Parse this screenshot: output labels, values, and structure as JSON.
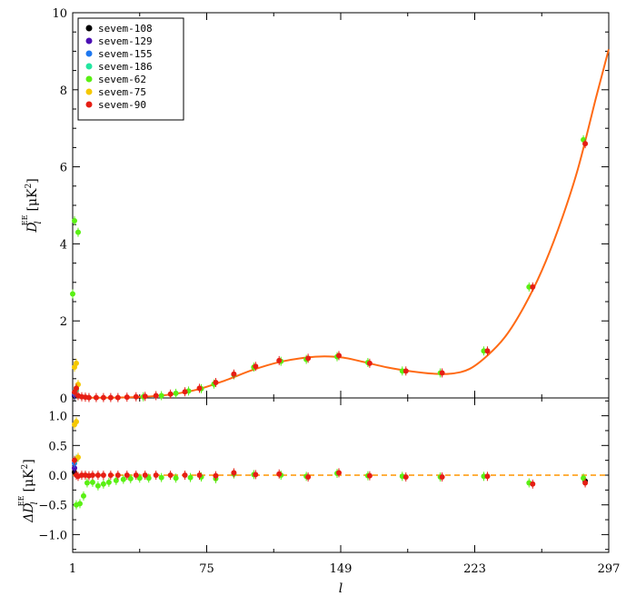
{
  "chart_data": [
    {
      "type": "scatter",
      "panel": "top",
      "ylabel": "D_l^EE [μK^2]",
      "ylabel_main": "D",
      "ylabel_sub": "l",
      "ylabel_sup": "EE",
      "ylabel_unit": "[μK",
      "ylabel_unit_sup": "2",
      "ylabel_unit_close": "]",
      "xlim": [
        1,
        297
      ],
      "ylim": [
        0,
        10
      ],
      "yticks": [
        "0",
        "2",
        "4",
        "6",
        "8",
        "10"
      ],
      "ytick_values": [
        0,
        2,
        4,
        6,
        8,
        10
      ],
      "legend_position": "top-left",
      "series": [
        {
          "name": "sevem-108",
          "color": "#000000",
          "points": [
            [
              2,
              0.05
            ]
          ]
        },
        {
          "name": "sevem-129",
          "color": "#4b0fb4",
          "points": [
            [
              2,
              0.08
            ]
          ]
        },
        {
          "name": "sevem-155",
          "color": "#1e78f0",
          "points": [
            [
              2,
              0.12
            ]
          ]
        },
        {
          "name": "sevem-186",
          "color": "#23e6a0",
          "points": [
            [
              3,
              0.2
            ]
          ]
        },
        {
          "name": "sevem-62",
          "color": "#5af014",
          "points": [
            [
              1,
              2.7
            ],
            [
              2,
              4.6
            ],
            [
              4,
              4.3
            ],
            [
              3,
              0.25
            ],
            [
              40,
              0.03
            ],
            [
              50,
              0.06
            ],
            [
              58,
              0.12
            ],
            [
              65,
              0.18
            ],
            [
              72,
              0.24
            ],
            [
              79,
              0.36
            ],
            [
              90,
              0.6
            ],
            [
              101,
              0.8
            ],
            [
              116,
              0.95
            ],
            [
              130,
              1.0
            ],
            [
              147,
              1.07
            ],
            [
              164,
              0.92
            ],
            [
              183,
              0.7
            ],
            [
              204,
              0.65
            ],
            [
              228,
              1.22
            ],
            [
              253,
              2.88
            ],
            [
              283,
              6.7
            ]
          ]
        },
        {
          "name": "sevem-75",
          "color": "#f5c800",
          "points": [
            [
              2,
              0.8
            ],
            [
              3,
              0.9
            ],
            [
              4,
              0.35
            ]
          ]
        },
        {
          "name": "sevem-90",
          "color": "#e61e14",
          "points": [
            [
              2,
              0.15
            ],
            [
              3,
              0.25
            ],
            [
              4,
              0.06
            ],
            [
              6,
              0.03
            ],
            [
              8,
              0.02
            ],
            [
              10,
              0.01
            ],
            [
              14,
              0.01
            ],
            [
              18,
              0.01
            ],
            [
              22,
              0.01
            ],
            [
              26,
              0.01
            ],
            [
              31,
              0.02
            ],
            [
              36,
              0.03
            ],
            [
              41,
              0.04
            ],
            [
              47,
              0.06
            ],
            [
              55,
              0.1
            ],
            [
              63,
              0.16
            ],
            [
              71,
              0.25
            ],
            [
              80,
              0.4
            ],
            [
              90,
              0.62
            ],
            [
              102,
              0.82
            ],
            [
              115,
              0.97
            ],
            [
              131,
              1.03
            ],
            [
              148,
              1.1
            ],
            [
              165,
              0.9
            ],
            [
              185,
              0.7
            ],
            [
              205,
              0.65
            ],
            [
              230,
              1.22
            ],
            [
              255,
              2.88
            ],
            [
              284,
              6.6
            ]
          ]
        }
      ],
      "model_curve": {
        "color": "#ff6a14",
        "points": [
          [
            1,
            0.05
          ],
          [
            10,
            0.01
          ],
          [
            25,
            0.01
          ],
          [
            40,
            0.03
          ],
          [
            55,
            0.09
          ],
          [
            70,
            0.22
          ],
          [
            85,
            0.45
          ],
          [
            100,
            0.72
          ],
          [
            115,
            0.93
          ],
          [
            130,
            1.05
          ],
          [
            140,
            1.08
          ],
          [
            150,
            1.05
          ],
          [
            162,
            0.93
          ],
          [
            175,
            0.79
          ],
          [
            188,
            0.69
          ],
          [
            200,
            0.63
          ],
          [
            210,
            0.63
          ],
          [
            220,
            0.75
          ],
          [
            230,
            1.1
          ],
          [
            240,
            1.6
          ],
          [
            250,
            2.35
          ],
          [
            260,
            3.3
          ],
          [
            270,
            4.5
          ],
          [
            280,
            5.95
          ],
          [
            290,
            7.8
          ],
          [
            297,
            9.05
          ]
        ]
      }
    },
    {
      "type": "scatter",
      "panel": "bottom",
      "ylabel": "ΔD_l^EE [μK^2]",
      "ylabel_main": "ΔD",
      "ylabel_sub": "l",
      "ylabel_sup": "EE",
      "ylabel_unit": "[μK",
      "ylabel_unit_sup": "2",
      "ylabel_unit_close": "]",
      "xlabel": "l",
      "xlim": [
        1,
        297
      ],
      "ylim": [
        -1.3,
        1.3
      ],
      "yticks": [
        "−1.0",
        "−0.5",
        "0.0",
        "0.5",
        "1.0"
      ],
      "ytick_values": [
        -1.0,
        -0.5,
        0.0,
        0.5,
        1.0
      ],
      "xticks": [
        "1",
        "75",
        "149",
        "223",
        "297"
      ],
      "xtick_values": [
        1,
        75,
        149,
        223,
        297
      ],
      "zero_line_color": "#ff9600",
      "series": [
        {
          "name": "sevem-108",
          "color": "#000000",
          "points": [
            [
              2,
              0.05
            ],
            [
              284,
              -0.1
            ]
          ]
        },
        {
          "name": "sevem-129",
          "color": "#4b0fb4",
          "points": [
            [
              2,
              0.12
            ]
          ]
        },
        {
          "name": "sevem-155",
          "color": "#1e78f0",
          "points": [
            [
              2,
              0.2
            ]
          ]
        },
        {
          "name": "sevem-186",
          "color": "#23e6a0",
          "points": [
            [
              3,
              0.27
            ]
          ]
        },
        {
          "name": "sevem-62",
          "color": "#5af014",
          "points": [
            [
              3,
              -0.5
            ],
            [
              5,
              -0.48
            ],
            [
              7,
              -0.35
            ],
            [
              9,
              -0.13
            ],
            [
              12,
              -0.12
            ],
            [
              15,
              -0.18
            ],
            [
              18,
              -0.15
            ],
            [
              21,
              -0.12
            ],
            [
              25,
              -0.09
            ],
            [
              29,
              -0.07
            ],
            [
              33,
              -0.06
            ],
            [
              38,
              -0.05
            ],
            [
              43,
              -0.05
            ],
            [
              50,
              -0.04
            ],
            [
              58,
              -0.05
            ],
            [
              66,
              -0.04
            ],
            [
              72,
              -0.03
            ],
            [
              80,
              -0.06
            ],
            [
              90,
              0.02
            ],
            [
              101,
              0.01
            ],
            [
              116,
              0.0
            ],
            [
              130,
              -0.02
            ],
            [
              147,
              0.03
            ],
            [
              164,
              -0.01
            ],
            [
              183,
              -0.02
            ],
            [
              204,
              -0.03
            ],
            [
              228,
              -0.02
            ],
            [
              253,
              -0.13
            ],
            [
              283,
              -0.05
            ]
          ]
        },
        {
          "name": "sevem-75",
          "color": "#f5c800",
          "points": [
            [
              2,
              0.85
            ],
            [
              3,
              0.9
            ],
            [
              4,
              0.3
            ]
          ]
        },
        {
          "name": "sevem-90",
          "color": "#e61e14",
          "points": [
            [
              2,
              0.25
            ],
            [
              3,
              0.0
            ],
            [
              4,
              -0.02
            ],
            [
              6,
              0.0
            ],
            [
              8,
              0.0
            ],
            [
              10,
              -0.01
            ],
            [
              12,
              0.0
            ],
            [
              15,
              0.0
            ],
            [
              18,
              0.0
            ],
            [
              22,
              0.0
            ],
            [
              26,
              0.0
            ],
            [
              31,
              0.0
            ],
            [
              36,
              0.0
            ],
            [
              41,
              0.0
            ],
            [
              47,
              0.0
            ],
            [
              55,
              0.0
            ],
            [
              63,
              0.0
            ],
            [
              71,
              0.0
            ],
            [
              80,
              -0.01
            ],
            [
              90,
              0.04
            ],
            [
              102,
              0.01
            ],
            [
              115,
              0.02
            ],
            [
              131,
              -0.03
            ],
            [
              148,
              0.04
            ],
            [
              165,
              -0.01
            ],
            [
              185,
              -0.03
            ],
            [
              205,
              -0.03
            ],
            [
              230,
              -0.02
            ],
            [
              255,
              -0.15
            ],
            [
              284,
              -0.13
            ]
          ]
        }
      ]
    }
  ]
}
